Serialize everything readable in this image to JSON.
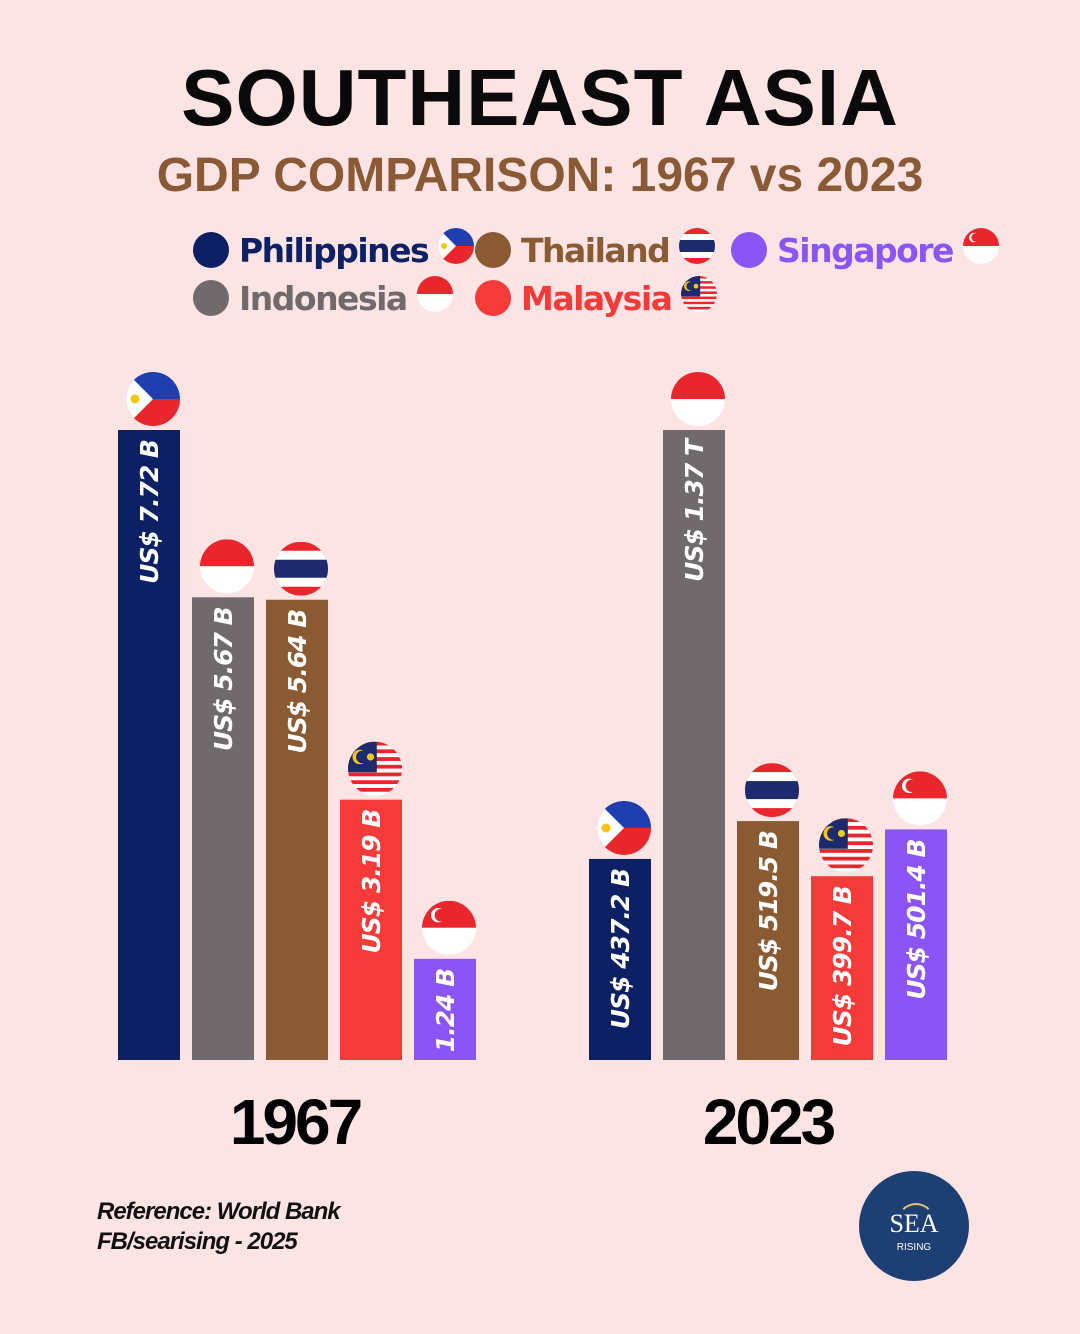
{
  "title": "SOUTHEAST ASIA",
  "subtitle": "GDP COMPARISON: 1967 vs 2023",
  "legend": [
    {
      "label": "Philippines",
      "color": "#0d2063",
      "flag": "ph"
    },
    {
      "label": "Thailand",
      "color": "#8a5a33",
      "flag": "th"
    },
    {
      "label": "Singapore",
      "color": "#8b55f5",
      "flag": "sg"
    },
    {
      "label": "Indonesia",
      "color": "#716a6c",
      "flag": "id"
    },
    {
      "label": "Malaysia",
      "color": "#f53a3a",
      "flag": "my"
    }
  ],
  "reference": [
    "Reference: World Bank",
    "FB/searising - 2025"
  ],
  "logo": {
    "main": "SEA",
    "sub": "RISING"
  },
  "chart_data": [
    {
      "type": "bar",
      "title": "1967",
      "unit": "US$ billions",
      "categories": [
        "Philippines",
        "Indonesia",
        "Thailand",
        "Malaysia",
        "Singapore"
      ],
      "values": [
        7.72,
        5.67,
        5.64,
        3.19,
        1.24
      ],
      "labels": [
        "US$ 7.72 B",
        "US$ 5.67 B",
        "US$ 5.64 B",
        "US$ 3.19 B",
        "1.24 B"
      ],
      "colors": [
        "#0d2063",
        "#716a6c",
        "#8a5a33",
        "#f53a3a",
        "#8b55f5"
      ],
      "flags": [
        "ph",
        "id",
        "th",
        "my",
        "sg"
      ]
    },
    {
      "type": "bar",
      "title": "2023",
      "unit": "US$ billions",
      "categories": [
        "Philippines",
        "Indonesia",
        "Thailand",
        "Malaysia",
        "Singapore"
      ],
      "values": [
        437.2,
        1370,
        519.5,
        399.7,
        501.4
      ],
      "labels": [
        "US$ 437.2 B",
        "US$ 1.37 T",
        "US$ 519.5 B",
        "US$ 399.7 B",
        "US$ 501.4 B"
      ],
      "colors": [
        "#0d2063",
        "#716a6c",
        "#8a5a33",
        "#f53a3a",
        "#8b55f5"
      ],
      "flags": [
        "ph",
        "id",
        "th",
        "my",
        "sg"
      ]
    }
  ]
}
